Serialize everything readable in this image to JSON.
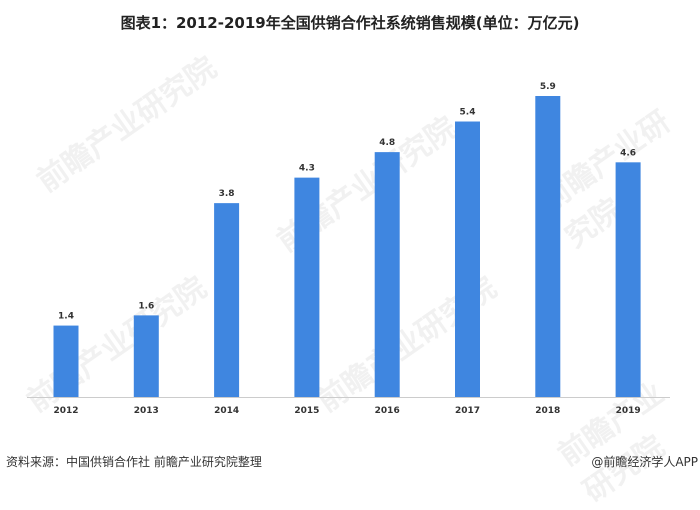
{
  "chart_data": {
    "type": "bar",
    "title": "图表1：2012-2019年全国供销合作社系统销售规模(单位：万亿元)",
    "categories": [
      "2012",
      "2013",
      "2014",
      "2015",
      "2016",
      "2017",
      "2018",
      "2019"
    ],
    "values": [
      1.4,
      1.6,
      3.8,
      4.3,
      4.8,
      5.4,
      5.9,
      4.6
    ],
    "xlabel": "",
    "ylabel": "",
    "ylim": [
      0,
      5.9
    ],
    "grid": false,
    "bar_color": "#3f86e0"
  },
  "footer": {
    "source": "资料来源：中国供销合作社 前瞻产业研究院整理",
    "credit": "@前瞻经济学人APP"
  },
  "watermark": "前瞻产业研究院"
}
